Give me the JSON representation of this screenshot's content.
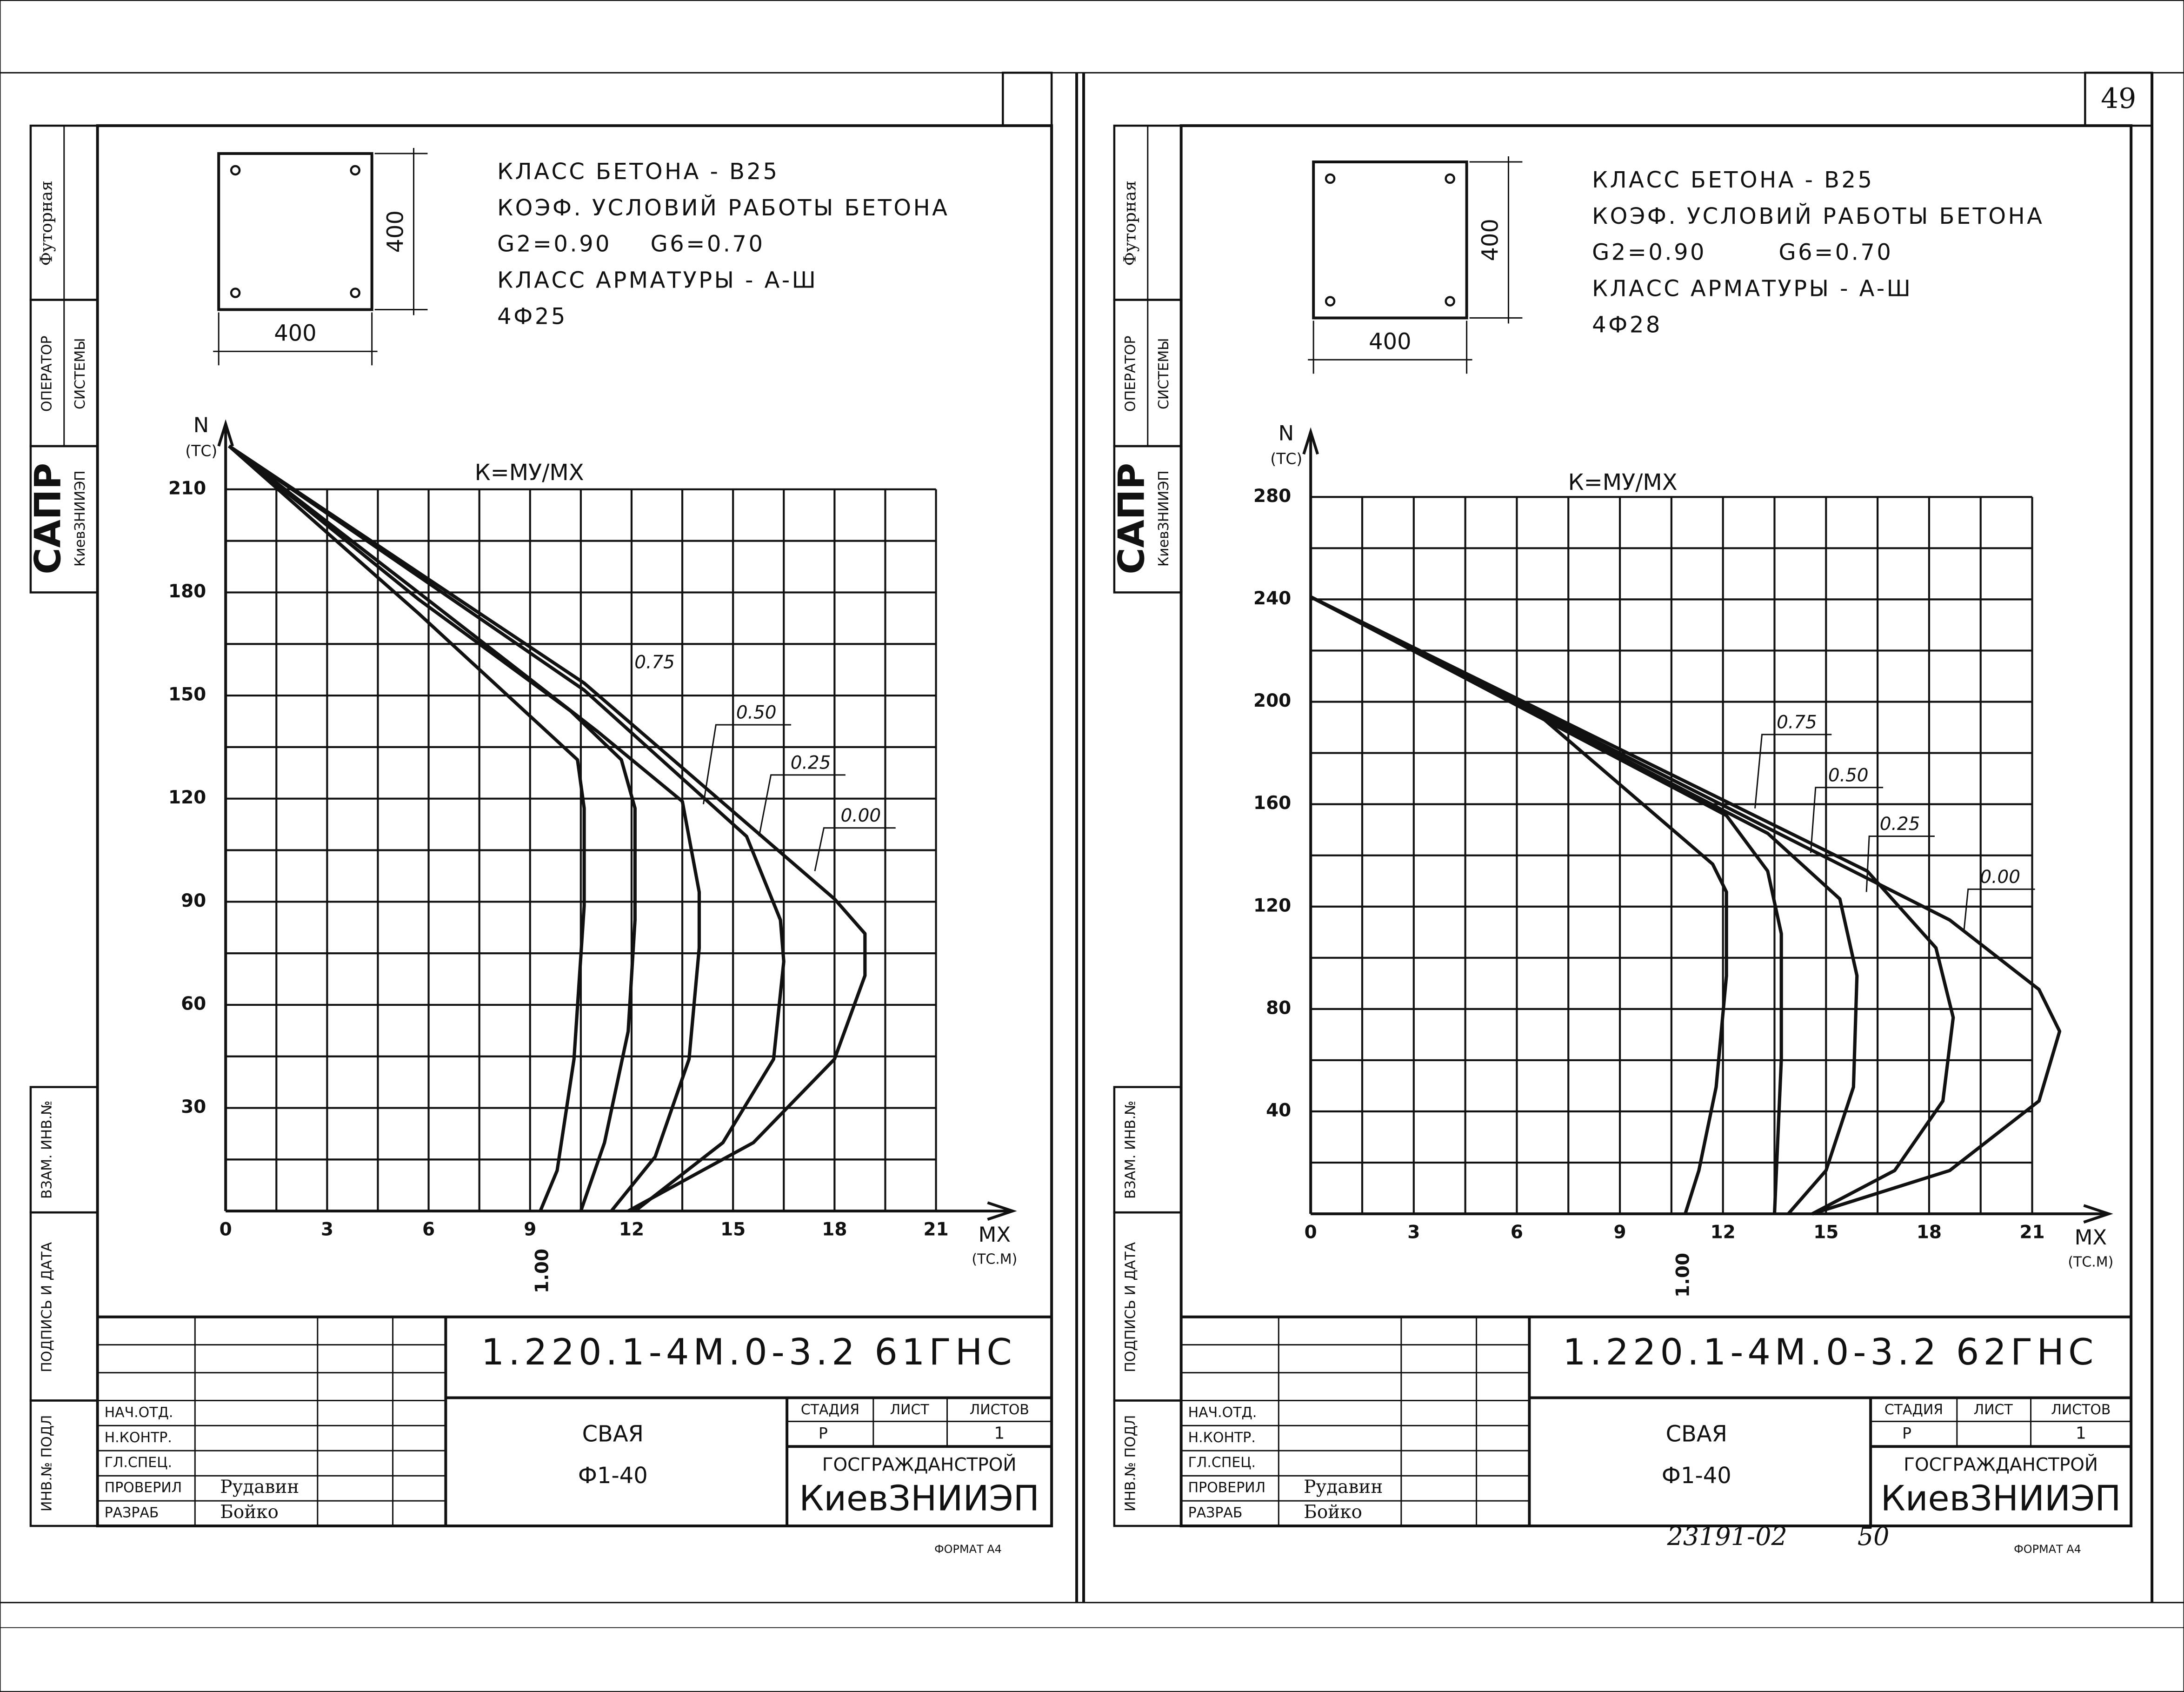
{
  "page_number": "49",
  "archive_number": "23191-02",
  "archive_page": "50",
  "sheets": [
    {
      "notes": [
        "КЛАСС БЕТОНА - В25",
        "КОЭФ. УСЛОВИЙ РАБОТЫ БЕТОНА",
        "G2=0.90",
        "G6=0.70",
        "КЛАСС АРМАТУРЫ - А-Ш",
        "4Ф25"
      ],
      "section_dims": [
        "400",
        "400"
      ],
      "side_strip": [
        "Футорная",
        "ОПЕРАТОР",
        "СИСТЕМЫ",
        "САПР",
        "КиевЗНИИЭП",
        "ВЗАМ. ИНВ.№",
        "ПОДПИСЬ И ДАТА",
        "ИНВ.№ ПОДЛ"
      ],
      "title_block": {
        "code": "1.220.1-4М.0-3.2 61ГНС",
        "name": "СВАЯ",
        "mark": "Ф1-40",
        "stage_header": [
          "СТАДИЯ",
          "ЛИСТ",
          "ЛИСТОВ"
        ],
        "stage": "Р",
        "sheets": "1",
        "org": "ГОСГРАЖДАНСТРОЙ",
        "institute": "КиевЗНИИЭП",
        "roles": [
          "НАЧ.ОТД.",
          "Н.КОНТР.",
          "ГЛ.СПЕЦ.",
          "ПРОВЕРИЛ",
          "РАЗРАБ"
        ],
        "people": [
          "Рудавин",
          "Бойко"
        ],
        "format": "ФОРМАТ А4"
      }
    },
    {
      "notes": [
        "КЛАСС БЕТОНА - В25",
        "КОЭФ. УСЛОВИЙ РАБОТЫ БЕТОНА",
        "G2=0.90",
        "G6=0.70",
        "КЛАСС АРМАТУРЫ - А-Ш",
        "4Ф28"
      ],
      "section_dims": [
        "400",
        "400"
      ],
      "side_strip": [
        "Футорная",
        "ОПЕРАТОР",
        "СИСТЕМЫ",
        "САПР",
        "КиевЗНИИЭП",
        "ВЗАМ. ИНВ.№",
        "ПОДПИСЬ И ДАТА",
        "ИНВ.№ ПОДЛ"
      ],
      "title_block": {
        "code": "1.220.1-4М.0-3.2 62ГНС",
        "name": "СВАЯ",
        "mark": "Ф1-40",
        "stage_header": [
          "СТАДИЯ",
          "ЛИСТ",
          "ЛИСТОВ"
        ],
        "stage": "Р",
        "sheets": "1",
        "org": "ГОСГРАЖДАНСТРОЙ",
        "institute": "КиевЗНИИЭП",
        "roles": [
          "НАЧ.ОТД.",
          "Н.КОНТР.",
          "ГЛ.СПЕЦ.",
          "ПРОВЕРИЛ",
          "РАЗРАБ"
        ],
        "people": [
          "Рудавин",
          "Бойко"
        ],
        "format": "ФОРМАТ А4"
      }
    }
  ],
  "chart_data": [
    {
      "type": "line",
      "title": "К=МУ/МХ",
      "y_label": "N",
      "y_unit": "(ТС)",
      "x_label": "МХ",
      "x_unit": "(ТС.М)",
      "xlim": [
        0,
        21
      ],
      "xticks": [
        0,
        3,
        6,
        9,
        12,
        15,
        18,
        21
      ],
      "ylim": [
        0,
        225
      ],
      "yticks": [
        30,
        60,
        90,
        120,
        150,
        180,
        210
      ],
      "grid": true,
      "color": "#111111",
      "series": [
        {
          "name": "1.00",
          "x": [
            0.1,
            5.7,
            10.4,
            10.6,
            10.6,
            10.3,
            9.8,
            9.3
          ],
          "values": [
            222.6,
            173.9,
            131.3,
            117.2,
            88.8,
            44.2,
            11.8,
            0
          ]
        },
        {
          "name": "0.75",
          "x": [
            0.1,
            5.7,
            10.2,
            11.7,
            12.1,
            12.1,
            11.9,
            11.2,
            10.5
          ],
          "values": [
            222.6,
            178,
            145.5,
            131.3,
            117.2,
            84.7,
            52.3,
            19.9,
            0
          ]
        },
        {
          "name": "0.50",
          "x": [
            0.1,
            5.7,
            11.0,
            13.5,
            14.0,
            14.0,
            13.7,
            12.7,
            11.4
          ],
          "values": [
            222.6,
            180,
            139.5,
            119.2,
            92.8,
            76.6,
            44.2,
            15.8,
            0
          ]
        },
        {
          "name": "0.25",
          "x": [
            0.1,
            10.6,
            15.4,
            16.4,
            16.5,
            16.2,
            14.7,
            12.1
          ],
          "values": [
            222.6,
            151.6,
            109,
            84.7,
            72.6,
            44.2,
            19.9,
            0
          ]
        },
        {
          "name": "0.00",
          "x": [
            0.1,
            10.6,
            18.0,
            18.9,
            18.9,
            18.0,
            15.6,
            11.9
          ],
          "values": [
            222.6,
            153.6,
            90.8,
            80.7,
            68.5,
            44.2,
            19.9,
            0
          ]
        }
      ]
    },
    {
      "type": "line",
      "title": "К=МУ/МХ",
      "y_label": "N",
      "y_unit": "(ТС)",
      "x_label": "МХ",
      "x_unit": "(ТС.М)",
      "xlim": [
        0,
        21
      ],
      "xticks": [
        0,
        3,
        6,
        9,
        12,
        15,
        18,
        21
      ],
      "ylim": [
        0,
        300
      ],
      "yticks": [
        40,
        80,
        120,
        160,
        200,
        240,
        280
      ],
      "grid": true,
      "color": "#111111",
      "series": [
        {
          "name": "1.00",
          "x": [
            0,
            6.5,
            11.7,
            12.1,
            12.1,
            11.8,
            11.3,
            10.9
          ],
          "values": [
            241,
            196.5,
            136.6,
            125.7,
            93,
            49.5,
            16.9,
            0
          ]
        },
        {
          "name": "0.75",
          "x": [
            0,
            12.1,
            13.3,
            13.7,
            13.7,
            13.5
          ],
          "values": [
            241,
            155.6,
            133.9,
            109.4,
            60.4,
            0
          ]
        },
        {
          "name": "0.50",
          "x": [
            0,
            13.3,
            15.4,
            15.9,
            15.8,
            15.0,
            13.9
          ],
          "values": [
            241,
            148.6,
            123,
            93,
            49.5,
            16.9,
            0
          ]
        },
        {
          "name": "0.25",
          "x": [
            0,
            16.2,
            18.2,
            18.7,
            18.4,
            17.0,
            14.6
          ],
          "values": [
            241,
            133.9,
            103.9,
            76.7,
            44.1,
            16.9,
            0
          ]
        },
        {
          "name": "0.00",
          "x": [
            0,
            18.6,
            21.2,
            21.8,
            21.2,
            18.6,
            14.6
          ],
          "values": [
            241,
            114.8,
            87.6,
            71.3,
            44.1,
            16.9,
            0
          ]
        }
      ]
    }
  ]
}
